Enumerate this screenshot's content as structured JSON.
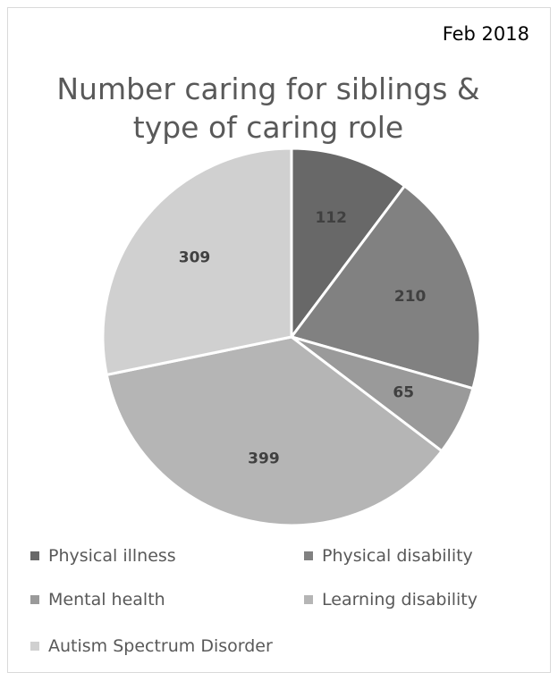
{
  "chart_data": {
    "type": "pie",
    "title": "Number caring for siblings & type of caring role",
    "date_label": "Feb 2018",
    "categories": [
      "Physical illness",
      "Physical disability",
      "Mental health",
      "Learning disability",
      "Autism Spectrum Disorder"
    ],
    "values": [
      112,
      210,
      65,
      399,
      309
    ],
    "colors": [
      "#686868",
      "#818181",
      "#9a9a9a",
      "#b5b5b5",
      "#d0d0d0"
    ],
    "data_labels_bold": true,
    "legend_position": "bottom"
  }
}
